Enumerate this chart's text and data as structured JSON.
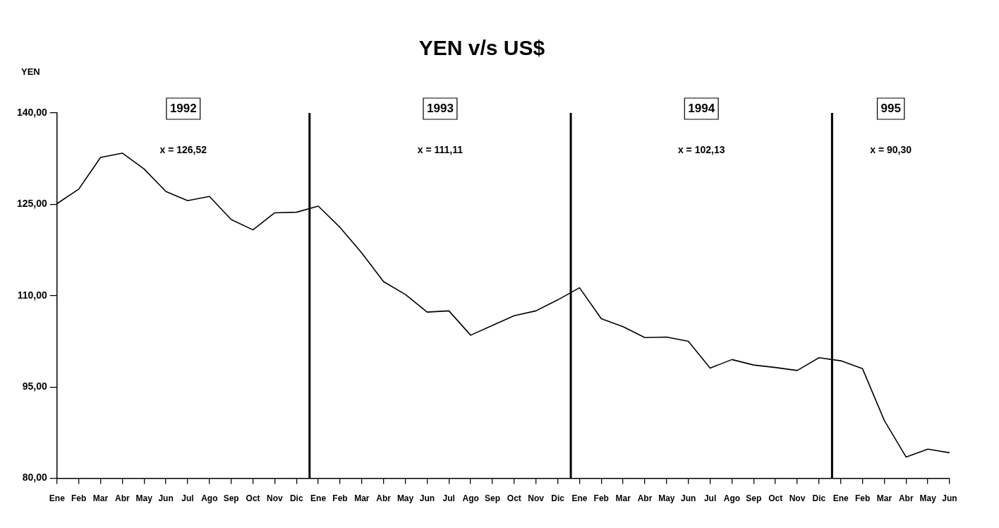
{
  "chart_data": {
    "type": "line",
    "title": "YEN v/s US$",
    "ylabel": "YEN",
    "categories": [
      "Ene",
      "Feb",
      "Mar",
      "Abr",
      "May",
      "Jun",
      "Jul",
      "Ago",
      "Sep",
      "Oct",
      "Nov",
      "Dic",
      "Ene",
      "Feb",
      "Mar",
      "Abr",
      "May",
      "Jun",
      "Jul",
      "Ago",
      "Sep",
      "Oct",
      "Nov",
      "Dic",
      "Ene",
      "Feb",
      "Mar",
      "Abr",
      "May",
      "Jun",
      "Jul",
      "Ago",
      "Sep",
      "Oct",
      "Nov",
      "Dic",
      "Ene",
      "Feb",
      "Mar",
      "Abr",
      "May",
      "Jun"
    ],
    "series": [
      {
        "color": "#000000",
        "values": [
          125.1,
          127.5,
          132.7,
          133.4,
          130.8,
          127.1,
          125.6,
          126.3,
          122.5,
          120.8,
          123.6,
          123.7,
          124.7,
          121.2,
          117.0,
          112.3,
          110.2,
          107.3,
          107.5,
          103.5,
          105.1,
          106.7,
          107.5,
          109.3,
          111.3,
          106.2,
          104.9,
          103.1,
          103.2,
          102.5,
          98.1,
          99.5,
          98.6,
          98.2,
          97.7,
          99.8,
          99.3,
          98.0,
          89.5,
          83.5,
          84.8,
          84.2
        ]
      }
    ],
    "ylim": [
      80,
      140
    ],
    "yticks": [
      {
        "value": 80,
        "label": "80,00"
      },
      {
        "value": 95,
        "label": "95,00"
      },
      {
        "value": 110,
        "label": "110,00"
      },
      {
        "value": 125,
        "label": "125,00"
      },
      {
        "value": 140,
        "label": "140,00"
      }
    ],
    "annotations": [
      "1992",
      "x = 126,52",
      "1993",
      "x = 111,11",
      "1994",
      "x = 102,13",
      "995",
      "x = 90,30"
    ],
    "grid": false,
    "legend": false,
    "marker": "none",
    "line_style": "solid"
  }
}
